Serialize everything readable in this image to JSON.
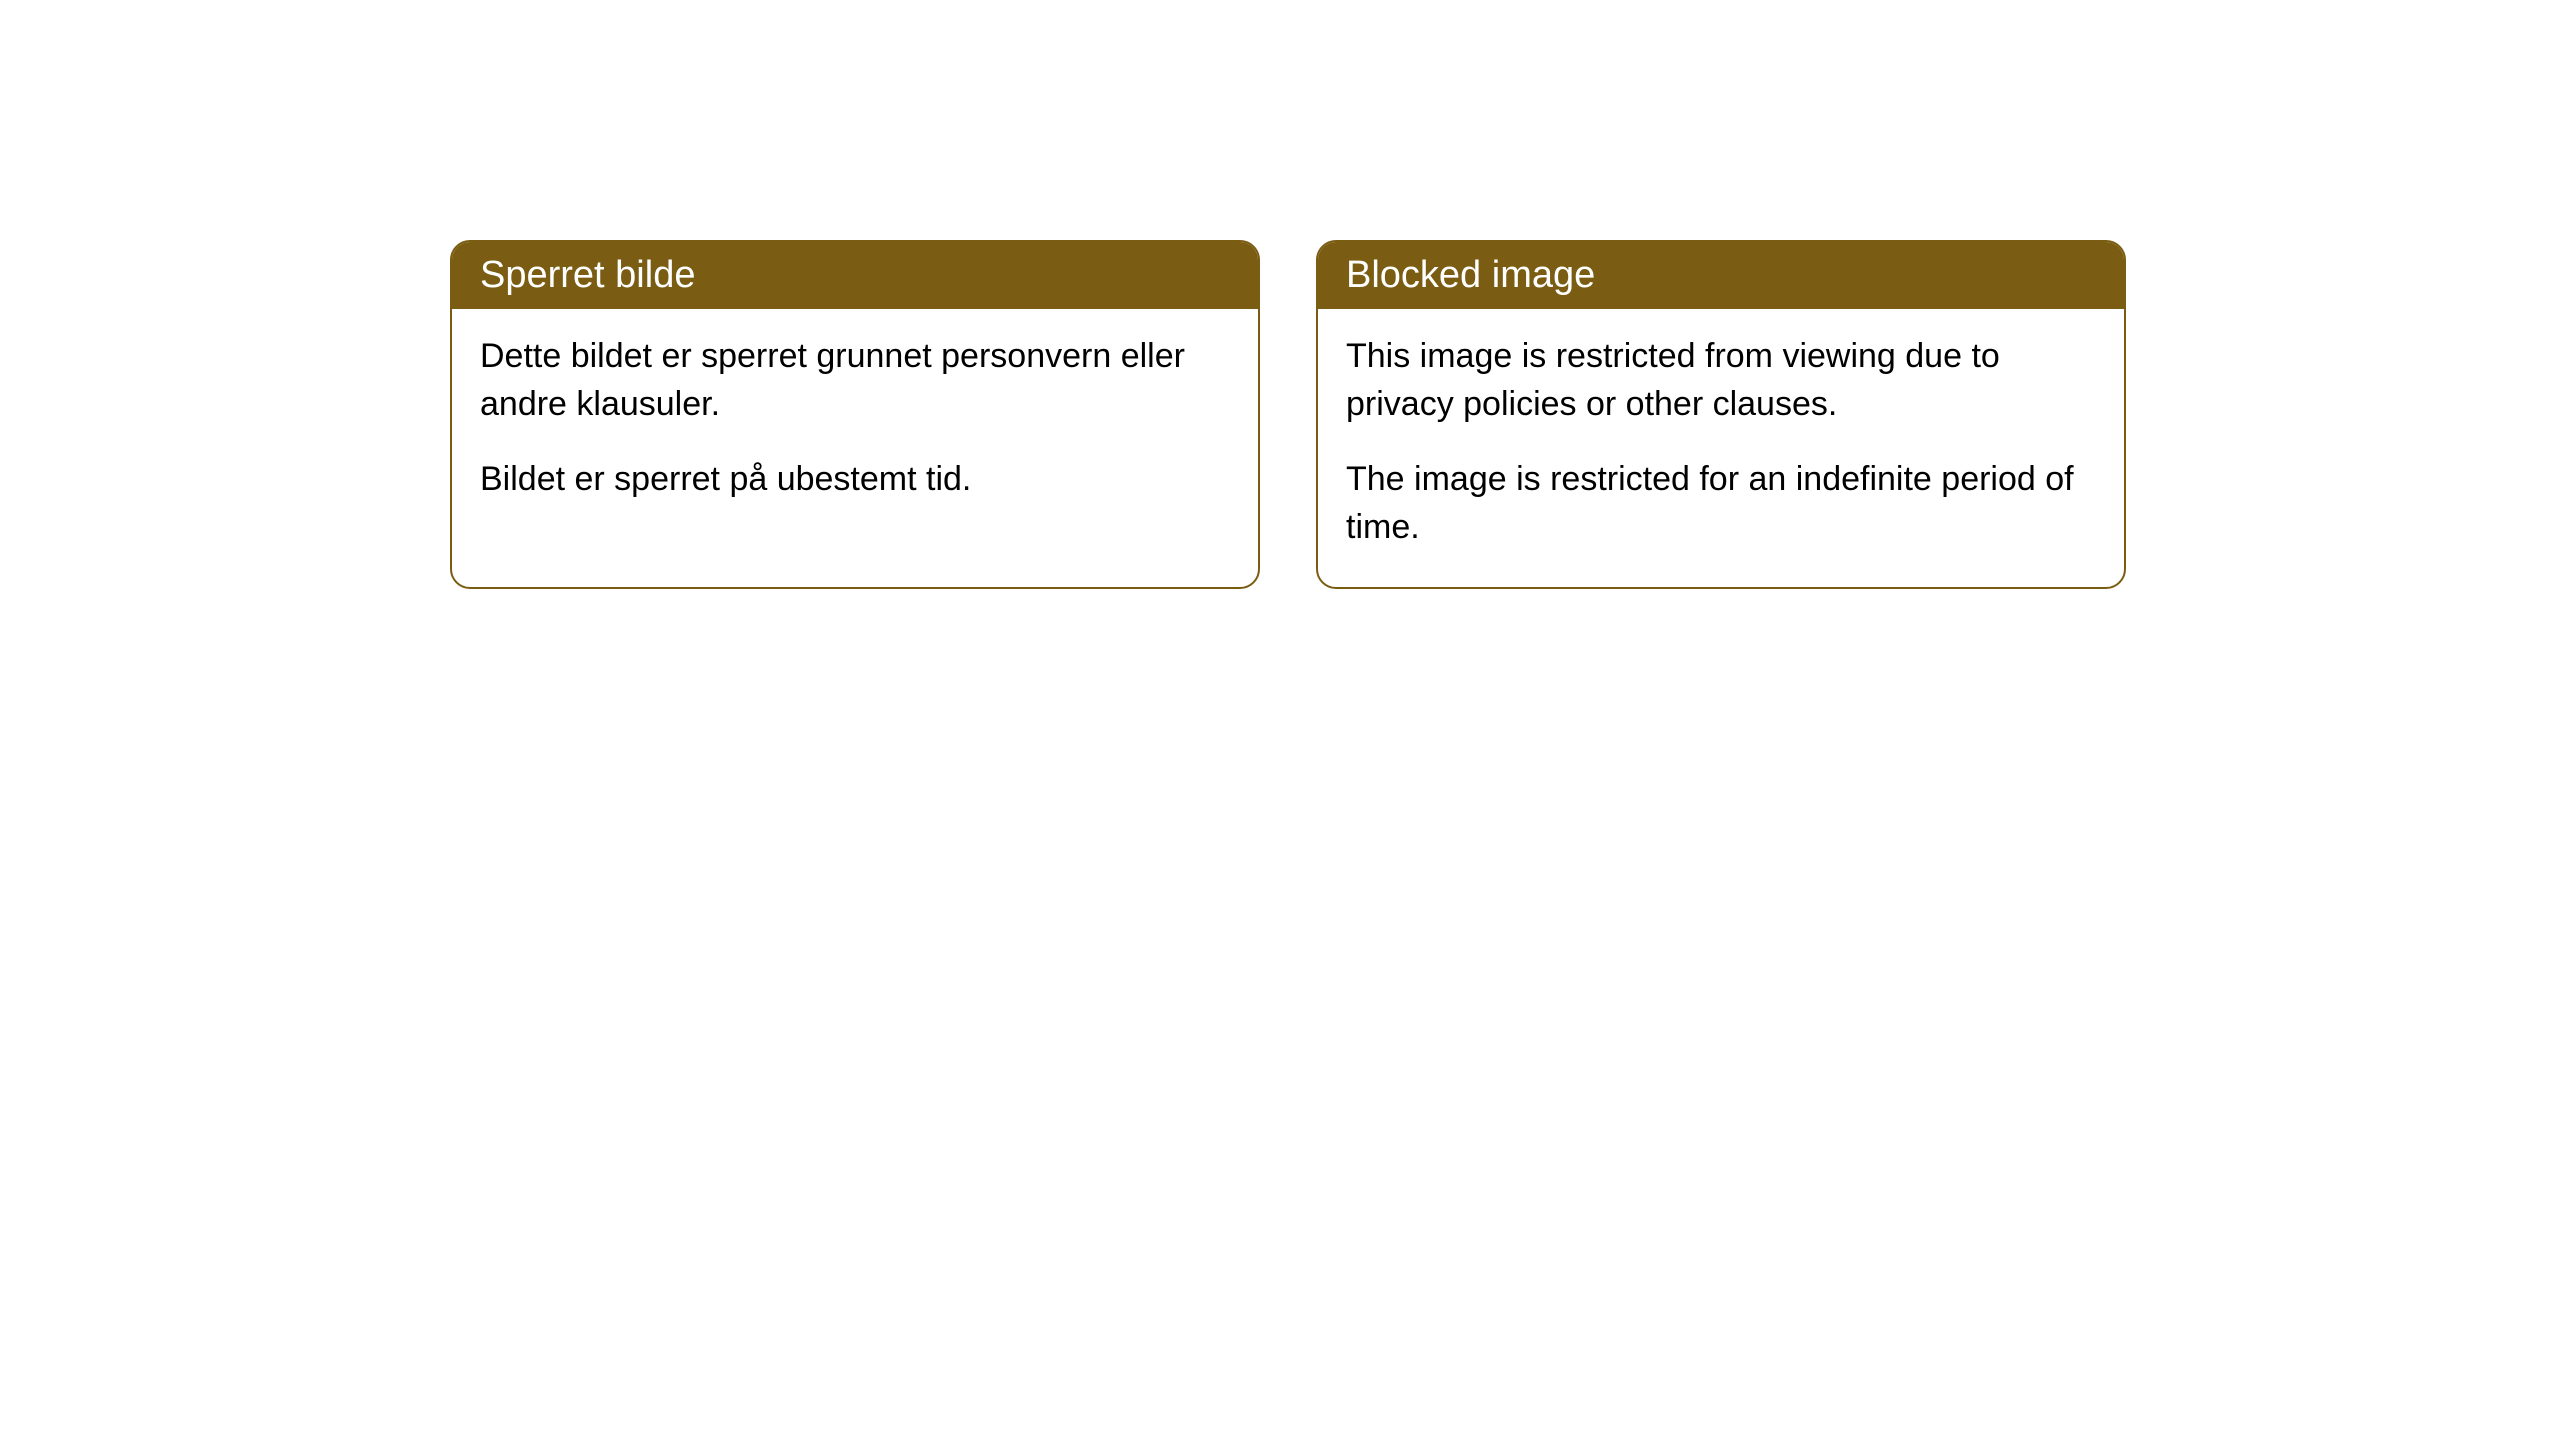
{
  "cards": [
    {
      "title": "Sperret bilde",
      "paragraph1": "Dette bildet er sperret grunnet personvern eller andre klausuler.",
      "paragraph2": "Bildet er sperret på ubestemt tid."
    },
    {
      "title": "Blocked image",
      "paragraph1": "This image is restricted from viewing due to privacy policies or other clauses.",
      "paragraph2": "The image is restricted for an indefinite period of time."
    }
  ],
  "styling": {
    "header_background_color": "#7a5c12",
    "header_text_color": "#ffffff",
    "border_color": "#7a5c12",
    "body_background_color": "#ffffff",
    "body_text_color": "#000000",
    "border_radius": 20,
    "header_fontsize": 38,
    "body_fontsize": 34
  }
}
